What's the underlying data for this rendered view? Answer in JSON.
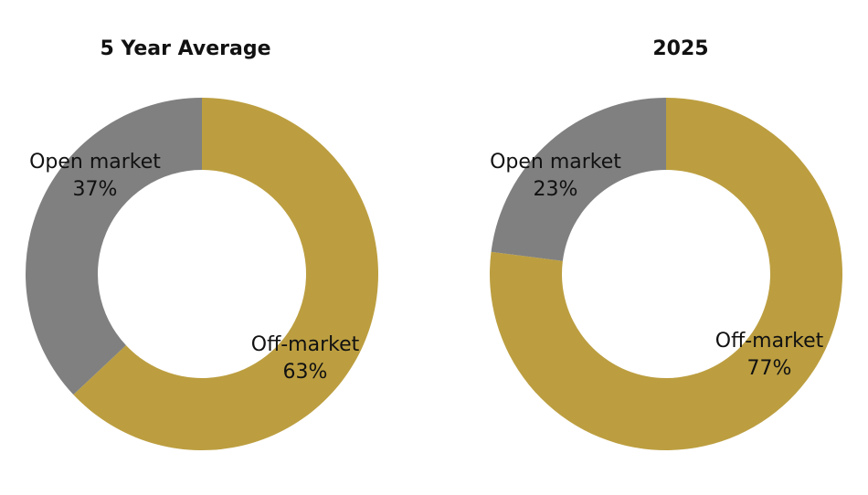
{
  "chart_data": [
    {
      "type": "pie",
      "title": "5 Year Average",
      "categories": [
        "Off-market",
        "Open market"
      ],
      "values": [
        63,
        37
      ],
      "value_labels": [
        "63%",
        "37%"
      ],
      "colors": [
        "#BC9E40",
        "#808080"
      ],
      "donut": true,
      "start": "12 o'clock",
      "direction": "clockwise",
      "legend": "none"
    },
    {
      "type": "pie",
      "title": "2025",
      "categories": [
        "Off-market",
        "Open market"
      ],
      "values": [
        77,
        23
      ],
      "value_labels": [
        "77%",
        "23%"
      ],
      "colors": [
        "#BC9E40",
        "#808080"
      ],
      "donut": true,
      "start": "12 o'clock",
      "direction": "clockwise",
      "legend": "none"
    }
  ]
}
